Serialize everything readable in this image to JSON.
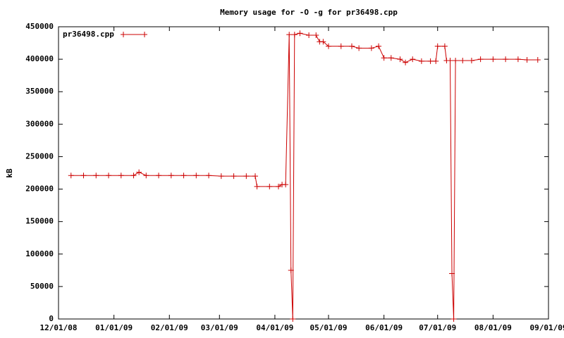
{
  "chart_data": {
    "type": "line",
    "title": "Memory usage for -O -g for pr36498.cpp",
    "ylabel": "kB",
    "legend_position": "upper left",
    "x": [
      "2008-12-08",
      "2008-12-15",
      "2008-12-22",
      "2008-12-29",
      "2009-01-05",
      "2009-01-12",
      "2009-01-15",
      "2009-01-19",
      "2009-01-26",
      "2009-02-02",
      "2009-02-09",
      "2009-02-16",
      "2009-02-23",
      "2009-03-02",
      "2009-03-09",
      "2009-03-16",
      "2009-03-21",
      "2009-03-22",
      "2009-03-29",
      "2009-04-03",
      "2009-04-05",
      "2009-04-07",
      "2009-04-09",
      "2009-04-10",
      "2009-04-11",
      "2009-04-12",
      "2009-04-15",
      "2009-04-20",
      "2009-04-24",
      "2009-04-26",
      "2009-04-28",
      "2009-05-01",
      "2009-05-08",
      "2009-05-14",
      "2009-05-18",
      "2009-05-25",
      "2009-05-29",
      "2009-06-01",
      "2009-06-05",
      "2009-06-10",
      "2009-06-13",
      "2009-06-17",
      "2009-06-22",
      "2009-06-27",
      "2009-06-30",
      "2009-07-01",
      "2009-07-05",
      "2009-07-06",
      "2009-07-08",
      "2009-07-09",
      "2009-07-10",
      "2009-07-11",
      "2009-07-15",
      "2009-07-20",
      "2009-07-25",
      "2009-08-01",
      "2009-08-08",
      "2009-08-15",
      "2009-08-20",
      "2009-08-26"
    ],
    "series": [
      {
        "name": "pr36498.cpp",
        "color": "#cc0000",
        "values": [
          221000,
          221000,
          221000,
          221000,
          221000,
          221000,
          226000,
          221000,
          221000,
          221000,
          221000,
          221000,
          221000,
          220000,
          220000,
          220000,
          220000,
          204000,
          204000,
          204000,
          207000,
          207000,
          438000,
          75000,
          0,
          438000,
          440000,
          437000,
          437000,
          427000,
          427000,
          420000,
          420000,
          420000,
          417000,
          417000,
          420000,
          402000,
          402000,
          400000,
          395000,
          400000,
          397000,
          397000,
          397000,
          420000,
          420000,
          398000,
          398000,
          70000,
          0,
          398000,
          398000,
          398000,
          400000,
          400000,
          400000,
          400000,
          399000,
          399000
        ]
      }
    ],
    "xlim": [
      "2008-12-01",
      "2009-09-01"
    ],
    "xticks": [
      {
        "value": "2008-12-01",
        "label": "12/01/08"
      },
      {
        "value": "2009-01-01",
        "label": "01/01/09"
      },
      {
        "value": "2009-02-01",
        "label": "02/01/09"
      },
      {
        "value": "2009-03-01",
        "label": "03/01/09"
      },
      {
        "value": "2009-04-01",
        "label": "04/01/09"
      },
      {
        "value": "2009-05-01",
        "label": "05/01/09"
      },
      {
        "value": "2009-06-01",
        "label": "06/01/09"
      },
      {
        "value": "2009-07-01",
        "label": "07/01/09"
      },
      {
        "value": "2009-08-01",
        "label": "08/01/09"
      },
      {
        "value": "2009-09-01",
        "label": "09/01/09"
      }
    ],
    "ylim": [
      0,
      450000
    ],
    "yticks": [
      0,
      50000,
      100000,
      150000,
      200000,
      250000,
      300000,
      350000,
      400000,
      450000
    ]
  }
}
